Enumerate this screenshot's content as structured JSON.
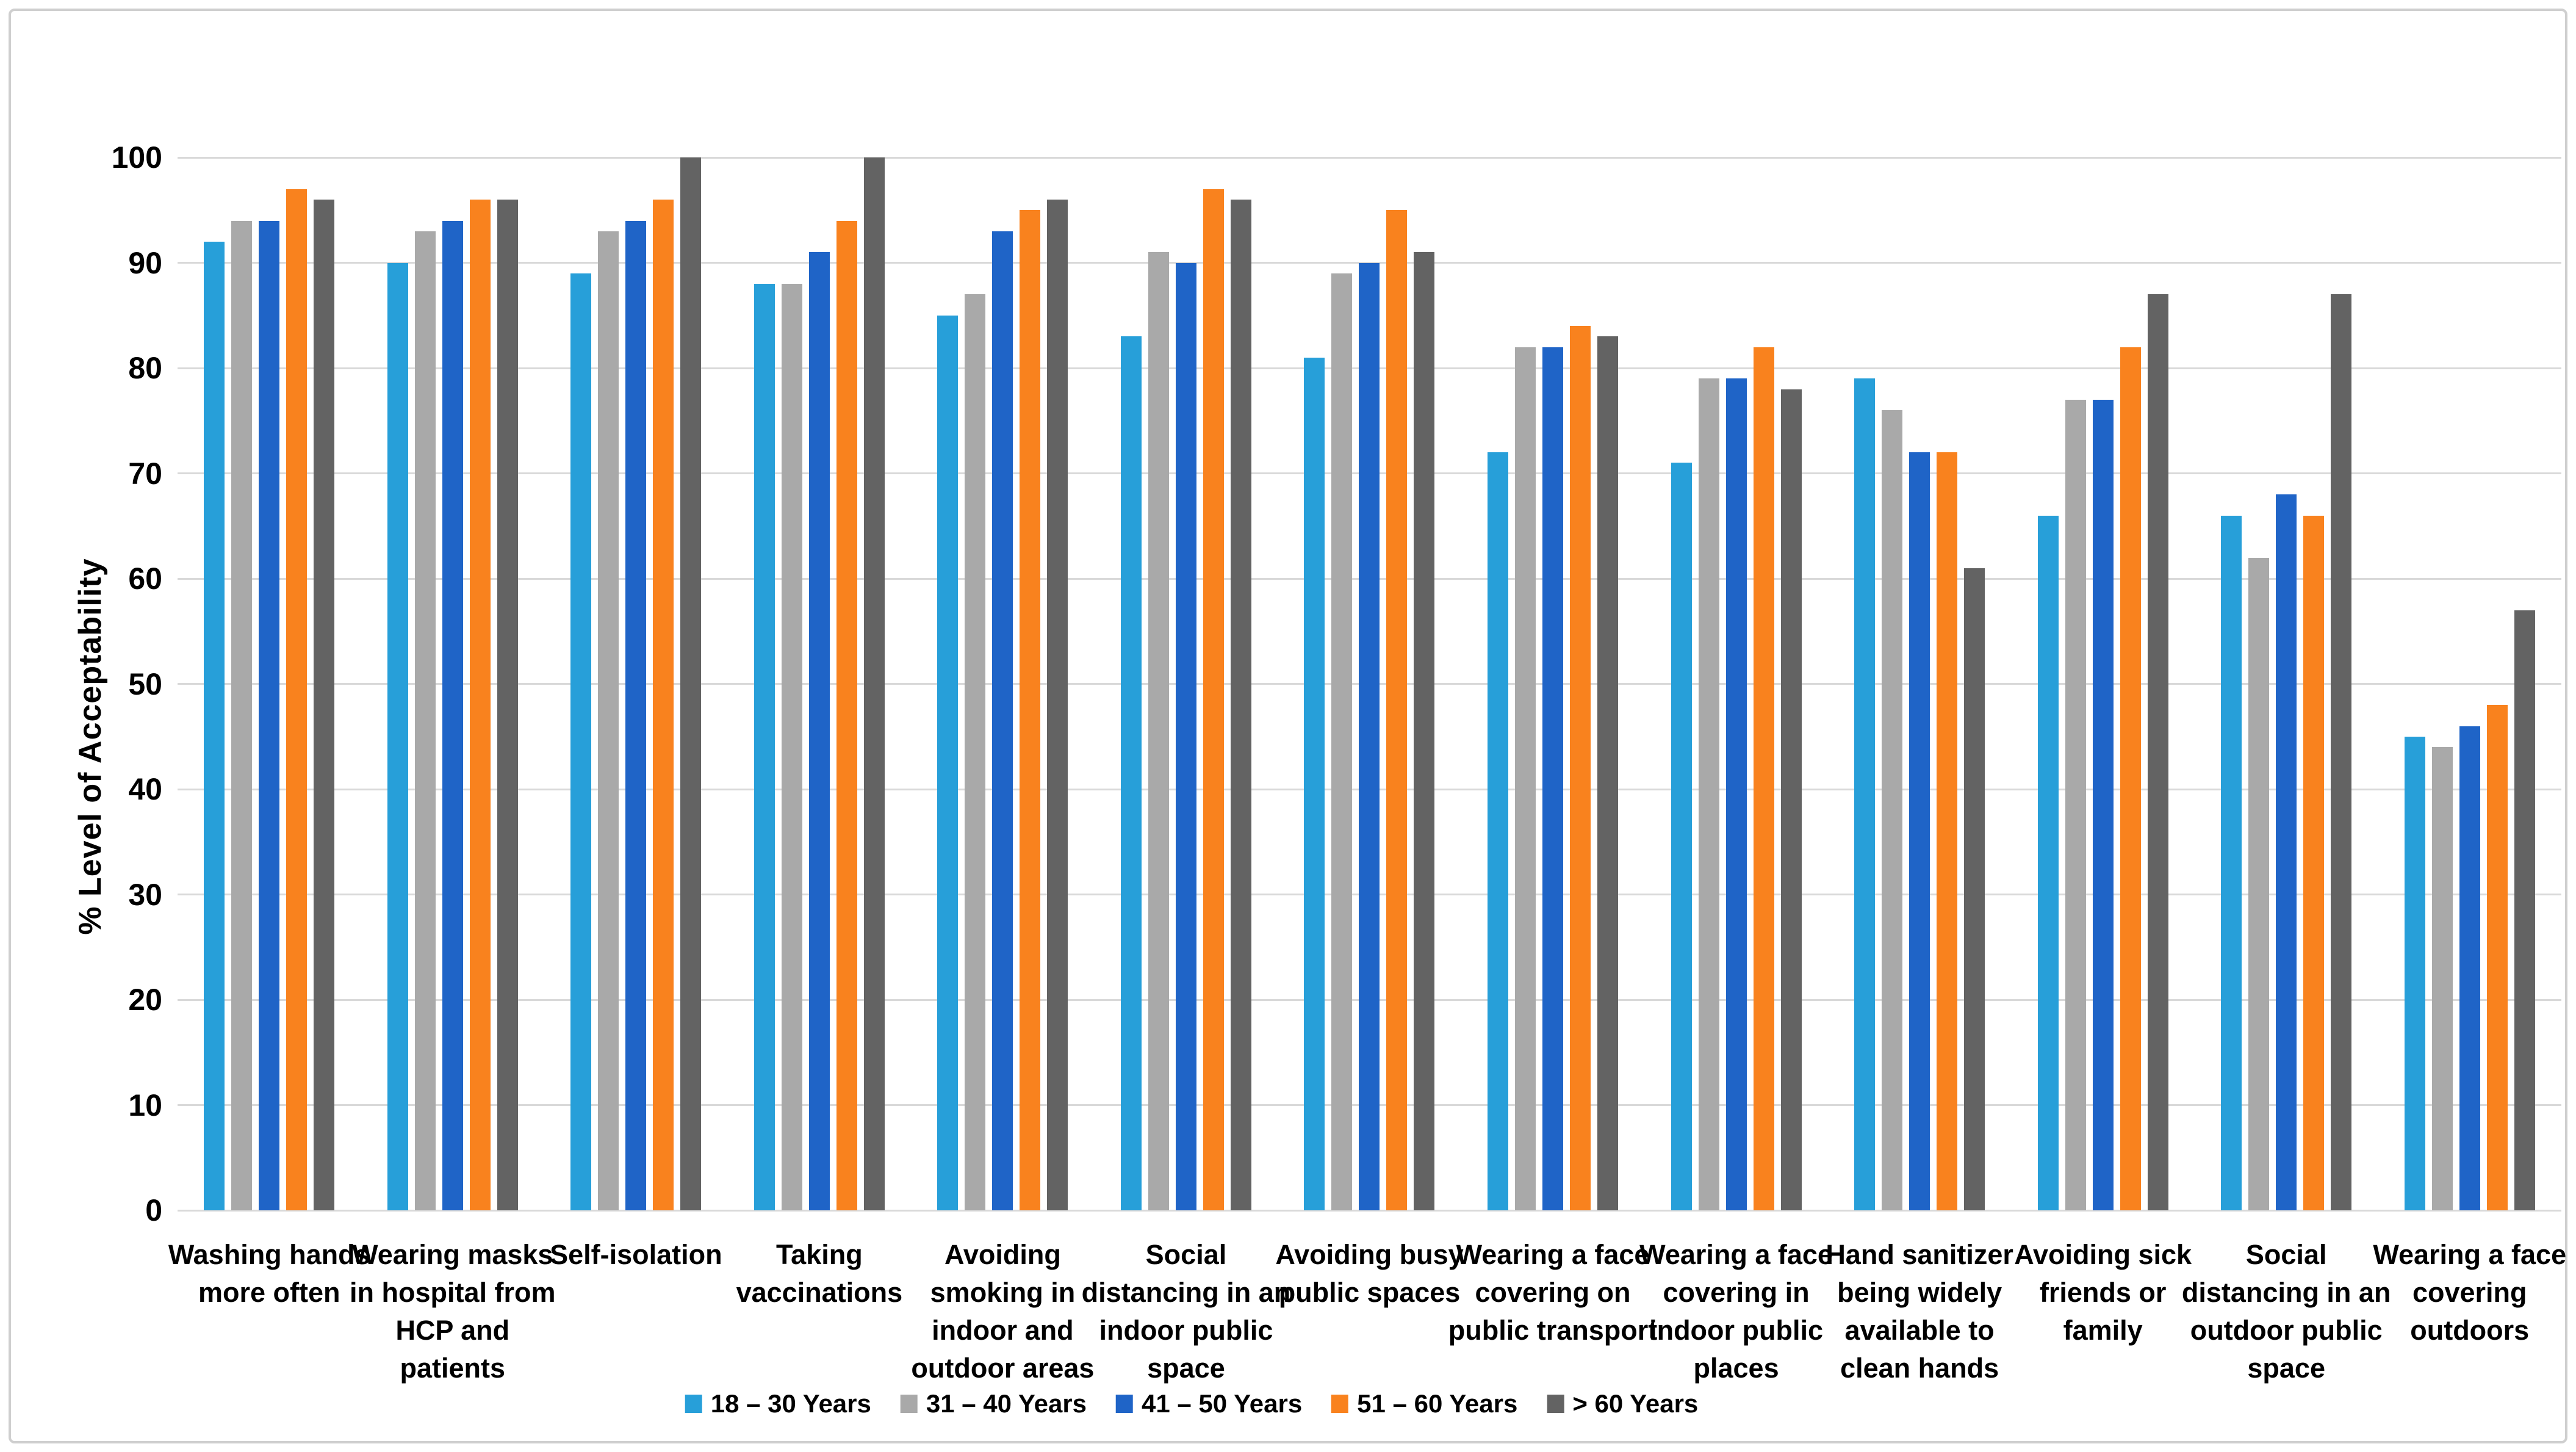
{
  "chart_data": {
    "type": "bar",
    "title": "",
    "xlabel": "",
    "ylabel": "% Level of Acceptability",
    "ylim": [
      0,
      100
    ],
    "ytick_step": 10,
    "grid": true,
    "legend_position": "bottom",
    "gridline_color": "#d9d9d9",
    "frame_border_color": "#cfcfcf",
    "categories": [
      "Washing hands more often",
      "Wearing masks in hospital from HCP and patients",
      "Self-isolation",
      "Taking vaccinations",
      "Avoiding smoking in indoor and outdoor areas",
      "Social distancing in an indoor public space",
      "Avoiding busy public spaces",
      "Wearing a face covering on public transport",
      "Wearing a face covering in indoor public places",
      "Hand sanitizer being widely available to clean hands",
      "Avoiding sick friends or family",
      "Social distancing in an outdoor public space",
      "Wearing a face covering outdoors"
    ],
    "series": [
      {
        "name": "18 – 30 Years",
        "color": "#279fd9",
        "values": [
          92,
          90,
          89,
          88,
          85,
          83,
          81,
          72,
          71,
          79,
          66,
          66,
          45
        ]
      },
      {
        "name": "31 – 40 Years",
        "color": "#a9a9a9",
        "values": [
          94,
          93,
          93,
          88,
          87,
          91,
          89,
          82,
          79,
          76,
          77,
          62,
          44
        ]
      },
      {
        "name": "41 – 50 Years",
        "color": "#1f64c7",
        "values": [
          94,
          94,
          94,
          91,
          93,
          90,
          90,
          82,
          79,
          72,
          77,
          68,
          46
        ]
      },
      {
        "name": "51 – 60 Years",
        "color": "#f9821e",
        "values": [
          97,
          96,
          96,
          94,
          95,
          97,
          95,
          84,
          82,
          72,
          82,
          66,
          48
        ]
      },
      {
        "name": "> 60 Years",
        "color": "#636363",
        "values": [
          96,
          96,
          100,
          100,
          96,
          96,
          91,
          83,
          78,
          61,
          87,
          87,
          57
        ]
      }
    ]
  }
}
